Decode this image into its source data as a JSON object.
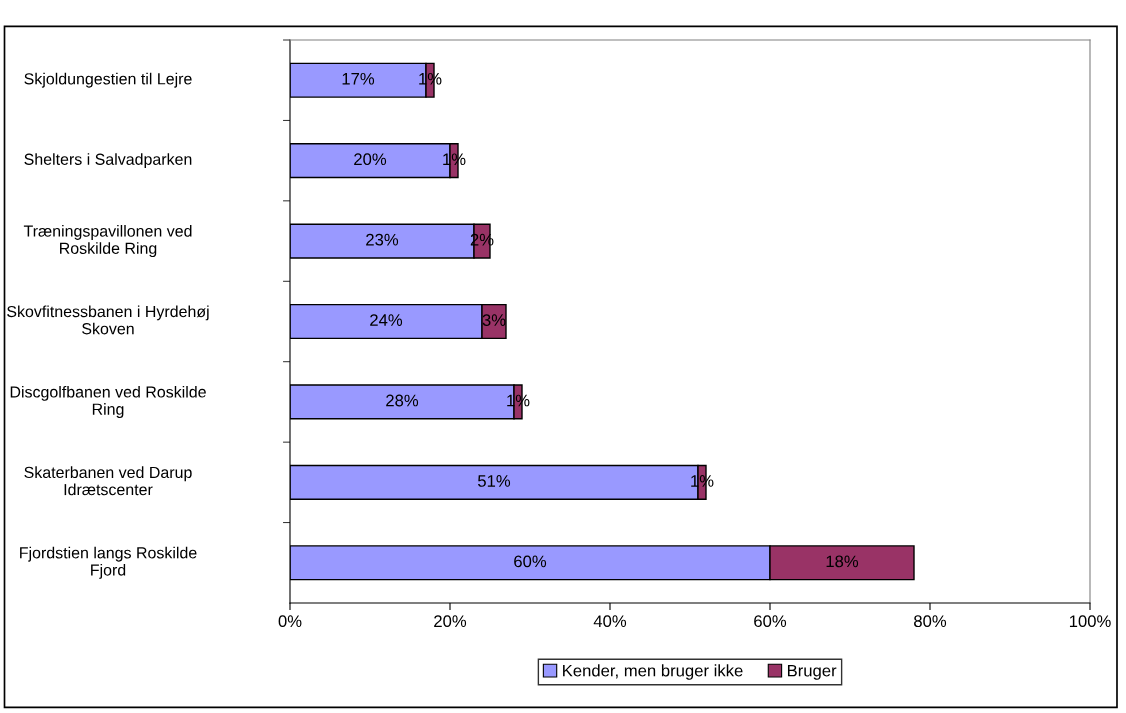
{
  "chart_data": {
    "type": "bar",
    "orientation": "horizontal",
    "stacked": true,
    "categories": [
      "Skjoldungestien til Lejre",
      "Shelters i Salvadparken",
      "Træningspavillonen ved Roskilde Ring",
      "Skovfitnessbanen i Hyrdehøj Skoven",
      "Discgolfbanen ved Roskilde Ring",
      "Skaterbanen ved Darup Idrætscenter",
      "Fjordstien langs Roskilde Fjord"
    ],
    "series": [
      {
        "name": "Kender, men bruger ikke",
        "color": "#9999ff",
        "values": [
          17,
          20,
          23,
          24,
          28,
          51,
          60
        ]
      },
      {
        "name": "Bruger",
        "color": "#993366",
        "values": [
          1,
          1,
          2,
          3,
          1,
          1,
          18
        ]
      }
    ],
    "xlim": [
      0,
      100
    ],
    "xticks": [
      {
        "value": 0,
        "label": "0%"
      },
      {
        "value": 20,
        "label": "20%"
      },
      {
        "value": 40,
        "label": "40%"
      },
      {
        "value": 60,
        "label": "60%"
      },
      {
        "value": 80,
        "label": "80%"
      },
      {
        "value": 100,
        "label": "100%"
      }
    ],
    "value_labels": [
      [
        "17%",
        "20%",
        "23%",
        "24%",
        "28%",
        "51%",
        "60%"
      ],
      [
        "1%",
        "1%",
        "2%",
        "3%",
        "1%",
        "1%",
        "18%"
      ]
    ],
    "grid": false,
    "legend": "bottom"
  }
}
